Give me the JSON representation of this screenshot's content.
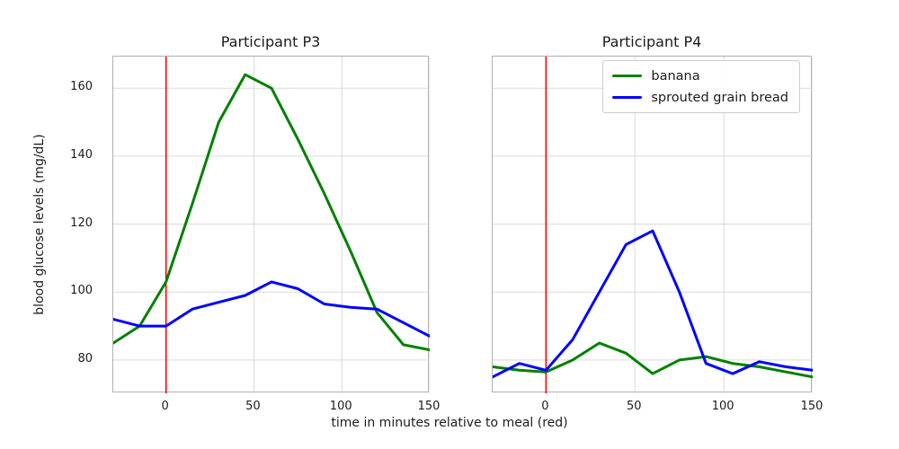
{
  "figure": {
    "xlabel": "time in minutes relative to meal (red)",
    "ylabel": "blood glucose levels (mg/dL)",
    "background": "#ffffff",
    "grid_color": "#d9d9d9",
    "spine_color": "#b0b0b0",
    "text_color": "#1c1c1c"
  },
  "legend": {
    "items": [
      {
        "name": "banana",
        "label": "banana",
        "color": "#008000"
      },
      {
        "name": "sprouted-grain-bread",
        "label": "sprouted grain bread",
        "color": "#0000ff"
      }
    ]
  },
  "chart_data": [
    {
      "type": "line",
      "title": "Participant P3",
      "x": [
        -30,
        -15,
        0,
        15,
        30,
        45,
        60,
        75,
        90,
        105,
        120,
        135,
        150
      ],
      "series": [
        {
          "name": "banana",
          "color": "#008000",
          "values": [
            85,
            90,
            103,
            126,
            150,
            164,
            160,
            145,
            129,
            112,
            94,
            84.5,
            83
          ]
        },
        {
          "name": "sprouted grain bread",
          "color": "#0000ff",
          "values": [
            92,
            90,
            90,
            95,
            97,
            99,
            103,
            101,
            96.5,
            95.5,
            95,
            91,
            87
          ]
        }
      ],
      "vline": {
        "x": 0,
        "color": "#ff0000",
        "meaning": "meal time"
      },
      "xticks": [
        0,
        50,
        100,
        150
      ],
      "yticks": [
        80,
        100,
        120,
        140,
        160
      ],
      "xlim": [
        -30,
        150
      ],
      "ylim": [
        70.2,
        169.3
      ],
      "grid": true,
      "show_ytick_labels": true
    },
    {
      "type": "line",
      "title": "Participant P4",
      "x": [
        -30,
        -15,
        0,
        15,
        30,
        45,
        60,
        75,
        90,
        105,
        120,
        135,
        150
      ],
      "series": [
        {
          "name": "banana",
          "color": "#008000",
          "values": [
            78,
            77,
            76.5,
            80,
            85,
            82,
            76,
            80,
            81,
            79,
            78,
            76.5,
            75
          ]
        },
        {
          "name": "sprouted grain bread",
          "color": "#0000ff",
          "values": [
            75,
            79,
            77,
            86,
            100,
            114,
            118,
            100,
            79,
            76,
            79.5,
            78,
            77
          ]
        }
      ],
      "vline": {
        "x": 0,
        "color": "#ff0000",
        "meaning": "meal time"
      },
      "xticks": [
        0,
        50,
        100,
        150
      ],
      "yticks": [
        80,
        100,
        120,
        140,
        160
      ],
      "xlim": [
        -30,
        150
      ],
      "ylim": [
        70.2,
        169.3
      ],
      "grid": true,
      "show_ytick_labels": false,
      "legend_position": "upper-center-right"
    }
  ]
}
